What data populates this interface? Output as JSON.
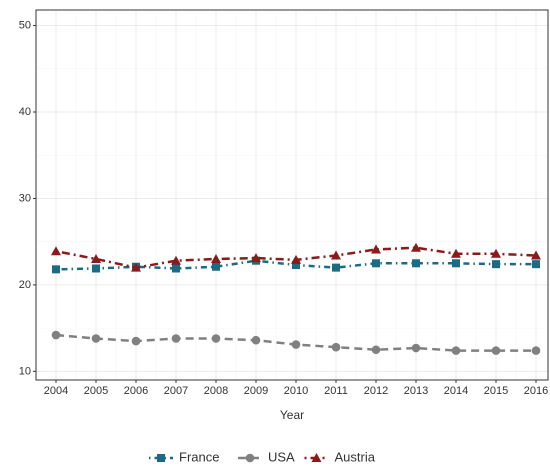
{
  "chart_data": {
    "type": "line",
    "x_label": "Year",
    "x": [
      2004,
      2005,
      2006,
      2007,
      2008,
      2009,
      2010,
      2011,
      2012,
      2013,
      2014,
      2015,
      2016
    ],
    "series": [
      {
        "name": "France",
        "color": "#1b6b86",
        "values": [
          21.8,
          21.9,
          22.1,
          21.9,
          22.1,
          22.8,
          22.3,
          22.0,
          22.5,
          22.5,
          22.5,
          22.4,
          22.4
        ]
      },
      {
        "name": "USA",
        "color": "#808080",
        "values": [
          14.2,
          13.8,
          13.5,
          13.8,
          13.8,
          13.6,
          13.1,
          12.8,
          12.5,
          12.7,
          12.4,
          12.4,
          12.4
        ]
      },
      {
        "name": "Austria",
        "color": "#8b1a1a",
        "values": [
          23.9,
          23.0,
          22.0,
          22.8,
          23.0,
          23.1,
          22.9,
          23.4,
          24.1,
          24.3,
          23.6,
          23.6,
          23.4
        ]
      }
    ],
    "xlim": [
      2003.5,
      2016.3
    ],
    "ylim": [
      9,
      51.8
    ],
    "xticks": [
      2004,
      2005,
      2006,
      2007,
      2008,
      2009,
      2010,
      2011,
      2012,
      2013,
      2014,
      2015,
      2016
    ],
    "yticks": [
      10,
      20,
      30,
      40,
      50
    ],
    "grid": true,
    "legend": "bottom"
  }
}
